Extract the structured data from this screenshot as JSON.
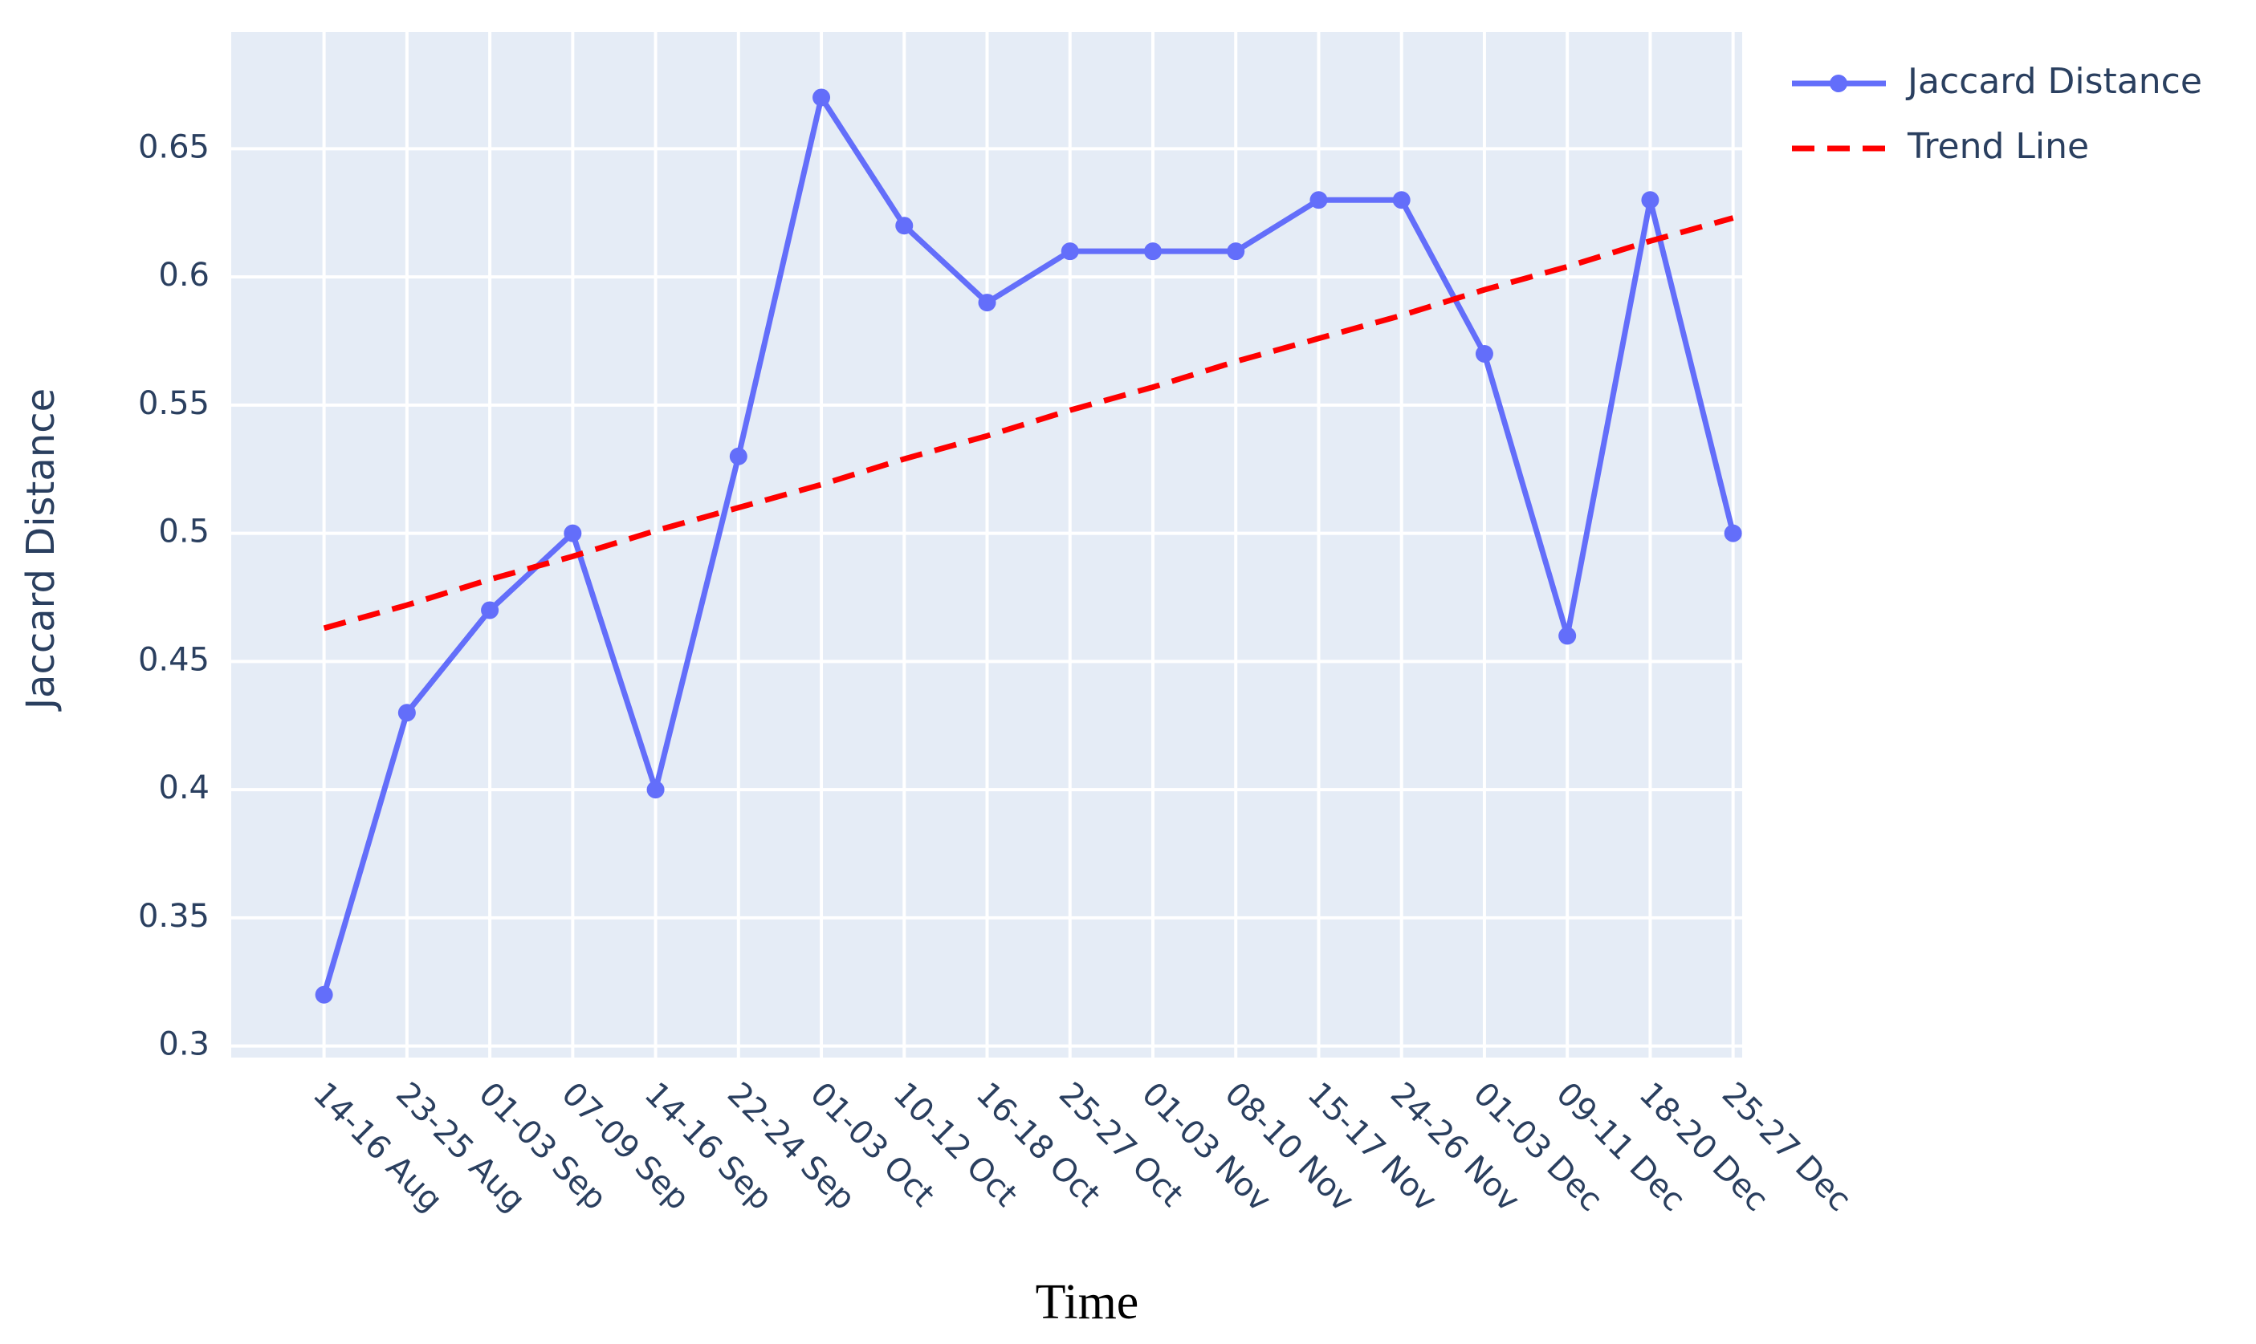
{
  "chart_data": {
    "type": "line",
    "x_label": "Time",
    "y_label": "Jaccard Distance",
    "categories": [
      "14-16 Aug",
      "23-25 Aug",
      "01-03 Sep",
      "07-09 Sep",
      "14-16 Sep",
      "22-24 Sep",
      "01-03 Oct",
      "10-12 Oct",
      "16-18 Oct",
      "25-27 Oct",
      "01-03 Nov",
      "08-10 Nov",
      "15-17 Nov",
      "24-26 Nov",
      "01-03 Dec",
      "09-11 Dec",
      "18-20 Dec",
      "25-27 Dec"
    ],
    "series": [
      {
        "name": "Jaccard Distance",
        "color": "#636efa",
        "dash": false,
        "markers": true,
        "values": [
          0.32,
          0.43,
          0.47,
          0.5,
          0.4,
          0.53,
          0.67,
          0.62,
          0.59,
          0.61,
          0.61,
          0.61,
          0.63,
          0.63,
          0.57,
          0.46,
          0.63,
          0.5
        ]
      },
      {
        "name": "Trend Line",
        "color": "#ff0000",
        "dash": true,
        "markers": false,
        "values": [
          0.463,
          0.472,
          0.482,
          0.491,
          0.501,
          0.51,
          0.519,
          0.529,
          0.538,
          0.548,
          0.557,
          0.567,
          0.576,
          0.585,
          0.595,
          0.604,
          0.614,
          0.623
        ]
      }
    ],
    "ylim": [
      0.2955,
      0.6955
    ],
    "yticks": [
      0.3,
      0.35,
      0.4,
      0.45,
      0.5,
      0.55,
      0.6,
      0.65
    ],
    "grid": true,
    "legend": "top-right"
  }
}
